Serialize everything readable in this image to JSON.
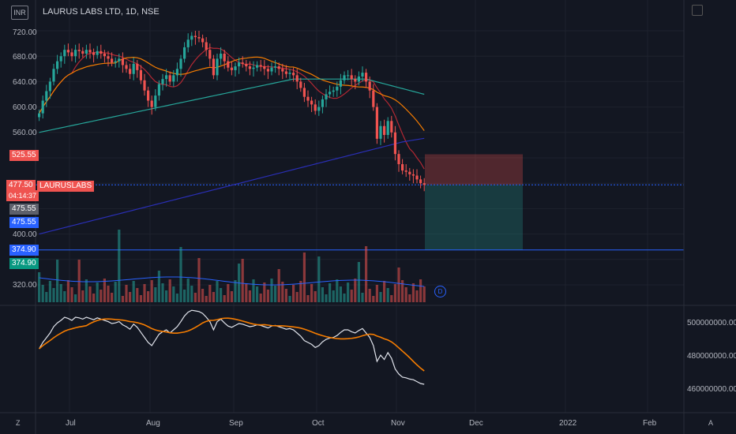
{
  "header": {
    "title": "LAURUS LABS LTD, 1D, NSE",
    "currency": "INR"
  },
  "price_axis": {
    "labels": [
      "720.00",
      "680.00",
      "640.00",
      "600.00",
      "560.00",
      "400.00",
      "320.00"
    ]
  },
  "price_tags": {
    "stop": "525.55",
    "last_price": "477.50",
    "countdown": "04:14:37",
    "symbol": "LAURUSLABS",
    "entry_a": "475.55",
    "entry_b": "475.55",
    "target_a": "374.90",
    "target_b": "374.90"
  },
  "indicator_axis": {
    "labels": [
      "500000000.00",
      "480000000.00",
      "460000000.00"
    ]
  },
  "time_axis": {
    "labels": [
      "Jul",
      "Aug",
      "Sep",
      "Oct",
      "Nov",
      "Dec",
      "2022",
      "Feb"
    ]
  },
  "controls": {
    "zoom_left": "Z",
    "auto_scale": "A",
    "dividends_marker": "D"
  },
  "colors": {
    "background": "#131722",
    "up": "#26a69a",
    "down": "#ef5350",
    "ma_fast": "#b22833",
    "ma_mid": "#f57c00",
    "ma_teal": "#26a69a",
    "ma_blue": "#2a2fb5",
    "price_line": "#2962ff"
  },
  "chart_data": {
    "type": "candlestick",
    "symbol": "LAURUS LABS LTD",
    "interval": "1D",
    "exchange": "NSE",
    "x_ticks": [
      "Jul",
      "Aug",
      "Sep",
      "Oct",
      "Nov",
      "Dec",
      "2022",
      "Feb"
    ],
    "y_ticks": [
      720,
      680,
      640,
      600,
      560,
      400,
      320
    ],
    "last_price": 477.5,
    "position": {
      "entry": 475.55,
      "stop": 525.55,
      "target": 374.9
    },
    "indicator_ticks": [
      500000000,
      480000000,
      460000000
    ]
  }
}
